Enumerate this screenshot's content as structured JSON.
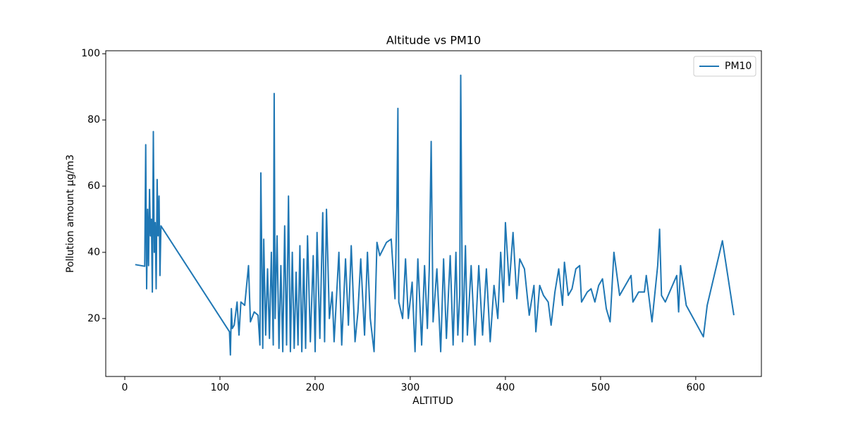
{
  "chart_data": {
    "type": "line",
    "title": "Altitude vs PM10",
    "x_label": "ALTITUD",
    "y_label": "Pollution amount µg/m3",
    "x": [
      11,
      21,
      22,
      23,
      24,
      25,
      26,
      27,
      28,
      29,
      30,
      31,
      32,
      33,
      34,
      35,
      36,
      37,
      38,
      110,
      111,
      112,
      113,
      115,
      118,
      120,
      122,
      126,
      130,
      132,
      136,
      140,
      142,
      143,
      145,
      146,
      148,
      150,
      152,
      154,
      156,
      157,
      158,
      160,
      162,
      164,
      166,
      168,
      170,
      172,
      174,
      176,
      178,
      180,
      182,
      184,
      186,
      188,
      190,
      192,
      195,
      198,
      200,
      202,
      205,
      208,
      210,
      212,
      215,
      218,
      220,
      225,
      228,
      232,
      235,
      238,
      242,
      245,
      248,
      252,
      255,
      258,
      262,
      265,
      268,
      275,
      280,
      284,
      286,
      287,
      288,
      292,
      295,
      298,
      302,
      305,
      308,
      312,
      315,
      318,
      320,
      322,
      324,
      328,
      332,
      335,
      338,
      342,
      345,
      348,
      350,
      352,
      353,
      355,
      358,
      360,
      364,
      368,
      372,
      376,
      380,
      384,
      388,
      392,
      395,
      398,
      400,
      404,
      408,
      412,
      415,
      420,
      425,
      430,
      432,
      436,
      440,
      445,
      448,
      452,
      456,
      460,
      462,
      466,
      470,
      474,
      478,
      480,
      486,
      490,
      494,
      498,
      502,
      506,
      510,
      514,
      520,
      532,
      534,
      540,
      546,
      548,
      554,
      560,
      562,
      564,
      568,
      580,
      582,
      584,
      590,
      608,
      612,
      628,
      640
    ],
    "series": [
      {
        "name": "PM10",
        "color": "#1f77b4",
        "values": [
          36.3,
          35.8,
          72.5,
          29,
          53,
          36,
          59,
          45,
          50,
          28,
          76.5,
          40,
          49,
          29,
          62,
          45,
          57,
          33,
          48,
          16,
          9,
          23,
          17,
          18,
          25,
          15,
          25,
          24,
          36,
          19,
          22,
          21,
          12,
          64,
          11,
          44,
          15,
          35,
          14,
          40,
          12,
          88,
          20,
          45,
          11,
          36,
          10,
          48,
          12,
          57,
          10,
          40,
          11,
          34,
          12,
          42,
          10,
          38,
          11,
          45,
          13,
          39,
          10,
          46,
          14,
          52,
          13,
          53,
          20,
          28,
          13,
          40,
          12,
          38,
          18,
          42,
          13,
          22,
          38,
          15,
          40,
          20,
          10,
          43,
          39,
          43,
          44,
          26,
          54,
          83.5,
          25,
          20,
          38,
          20,
          31,
          10,
          38,
          12,
          36,
          17,
          35,
          73.5,
          19,
          35,
          10,
          38,
          14,
          39,
          12,
          40,
          15,
          27,
          93.5,
          13,
          42,
          15,
          36,
          12,
          36,
          15,
          35,
          13,
          30,
          20,
          40,
          25,
          49,
          30,
          46,
          26,
          38,
          35,
          21,
          30,
          16,
          30,
          27,
          25,
          18,
          28,
          35,
          24,
          37,
          27,
          29,
          35,
          36,
          25,
          28,
          29,
          25,
          30,
          32,
          23,
          19,
          40,
          27,
          33,
          25,
          28,
          28,
          33,
          19,
          36,
          47,
          27,
          25,
          33,
          22,
          36,
          24,
          14.5,
          24,
          43.5,
          21
        ]
      }
    ],
    "xlim": [
      -20,
      669
    ],
    "ylim": [
      2.5,
      100.9
    ],
    "xticks": [
      0,
      100,
      200,
      300,
      400,
      500,
      600
    ],
    "yticks": [
      20,
      40,
      60,
      80,
      100
    ],
    "grid": false,
    "legend_position": "upper right"
  }
}
